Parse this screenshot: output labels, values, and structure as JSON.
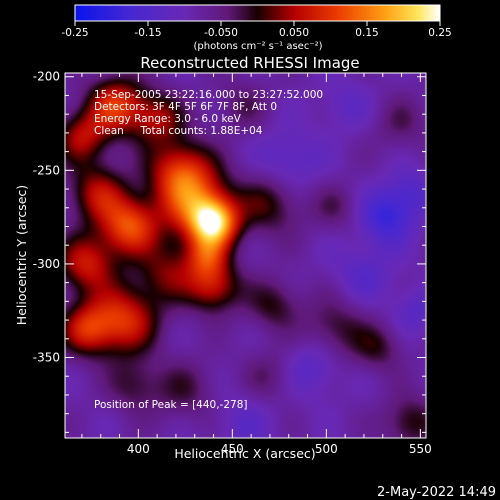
{
  "colorbar": {
    "ticks": [
      "-0.25",
      "-0.15",
      "-0.050",
      "0.050",
      "0.15",
      "0.25"
    ],
    "unit_label": "(photons cm⁻² s⁻¹ asec⁻²)",
    "range": [
      -0.25,
      0.25
    ]
  },
  "footer": {
    "date": "2-May-2022 14:49"
  },
  "chart_data": {
    "type": "heatmap",
    "title": "Reconstructed RHESSI Image",
    "xlabel": "Heliocentric X (arcsec)",
    "ylabel": "Heliocentric Y (arcsec)",
    "xlim": [
      361,
      553
    ],
    "ylim": [
      -393,
      -198
    ],
    "xticks": [
      "400",
      "450",
      "500",
      "550"
    ],
    "yticks": [
      "-200",
      "-250",
      "-300",
      "-350"
    ],
    "info_lines": [
      "15-Sep-2005 23:22:16.000 to 23:27:52.000",
      "Detectors: 3F 4F 5F 6F 7F 8F, Att 0",
      "Energy Range: 3.0 - 6.0 keV",
      "Clean     Total counts: 1.88E+04"
    ],
    "peak_text": "Position of Peak = [440,-278]",
    "peak": [
      440,
      -278
    ],
    "colormap": "blue-purple-red-yellow-white",
    "blobs": [
      {
        "x": 440,
        "y": -278,
        "amp": 0.25,
        "s": 9
      },
      {
        "x": 430,
        "y": -268,
        "amp": 0.17,
        "s": 14
      },
      {
        "x": 422,
        "y": -250,
        "amp": 0.15,
        "s": 12
      },
      {
        "x": 388,
        "y": -215,
        "amp": 0.17,
        "s": 11
      },
      {
        "x": 370,
        "y": -232,
        "amp": 0.13,
        "s": 10
      },
      {
        "x": 410,
        "y": -222,
        "amp": 0.12,
        "s": 10
      },
      {
        "x": 395,
        "y": -280,
        "amp": 0.19,
        "s": 11
      },
      {
        "x": 378,
        "y": -262,
        "amp": 0.13,
        "s": 11
      },
      {
        "x": 372,
        "y": -300,
        "amp": 0.15,
        "s": 11
      },
      {
        "x": 392,
        "y": -330,
        "amp": 0.17,
        "s": 13
      },
      {
        "x": 372,
        "y": -335,
        "amp": 0.14,
        "s": 10
      },
      {
        "x": 440,
        "y": -312,
        "amp": 0.15,
        "s": 10
      },
      {
        "x": 436,
        "y": -296,
        "amp": 0.12,
        "s": 8
      },
      {
        "x": 415,
        "y": -305,
        "amp": 0.1,
        "s": 11
      },
      {
        "x": 470,
        "y": -268,
        "amp": 0.09,
        "s": 12
      },
      {
        "x": 472,
        "y": -322,
        "amp": 0.08,
        "s": 10
      },
      {
        "x": 505,
        "y": -335,
        "amp": 0.08,
        "s": 12
      },
      {
        "x": 528,
        "y": -345,
        "amp": 0.07,
        "s": 9
      },
      {
        "x": 425,
        "y": -368,
        "amp": 0.06,
        "s": 12
      },
      {
        "x": 398,
        "y": -365,
        "amp": 0.07,
        "s": 10
      },
      {
        "x": 545,
        "y": -385,
        "amp": 0.09,
        "s": 10
      },
      {
        "x": 505,
        "y": -270,
        "amp": 0.05,
        "s": 9
      },
      {
        "x": 540,
        "y": -225,
        "amp": 0.05,
        "s": 10
      },
      {
        "x": 455,
        "y": -215,
        "amp": 0.05,
        "s": 10
      },
      {
        "x": 470,
        "y": -360,
        "amp": 0.05,
        "s": 10
      },
      {
        "x": 532,
        "y": -275,
        "amp": -0.1,
        "s": 10
      },
      {
        "x": 545,
        "y": -262,
        "amp": -0.06,
        "s": 9
      },
      {
        "x": 480,
        "y": -245,
        "amp": -0.06,
        "s": 12
      },
      {
        "x": 493,
        "y": -355,
        "amp": -0.06,
        "s": 11
      },
      {
        "x": 520,
        "y": -305,
        "amp": -0.05,
        "s": 12
      },
      {
        "x": 548,
        "y": -325,
        "amp": -0.05,
        "s": 9
      },
      {
        "x": 455,
        "y": -385,
        "amp": -0.04,
        "s": 12
      },
      {
        "x": 510,
        "y": -215,
        "amp": -0.04,
        "s": 10
      }
    ]
  }
}
